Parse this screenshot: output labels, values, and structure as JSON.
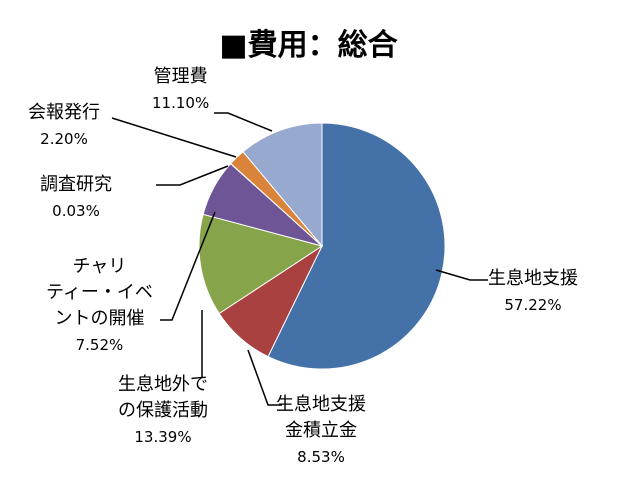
{
  "chart_data": {
    "type": "pie",
    "title": "■費用：総合",
    "slices": [
      {
        "label": "生息地支援",
        "value": 57.22,
        "display": "57.22%",
        "color": "#4472a8"
      },
      {
        "label": "生息地支援金積立金",
        "value": 8.53,
        "display": "8.53%",
        "color": "#a8413f"
      },
      {
        "label": "生息地外での保護活動",
        "value": 13.39,
        "display": "13.39%",
        "color": "#86a44a"
      },
      {
        "label": "チャリティー・イベントの開催",
        "value": 7.52,
        "display": "7.52%",
        "color": "#6e5596"
      },
      {
        "label": "調査研究",
        "value": 0.03,
        "display": "0.03%",
        "color": "#3d8fa8"
      },
      {
        "label": "会報発行",
        "value": 2.2,
        "display": "2.20%",
        "color": "#d9843a"
      },
      {
        "label": "管理費",
        "value": 11.1,
        "display": "11.10%",
        "color": "#98a9cf"
      }
    ]
  },
  "labels": {
    "s0": {
      "l1": "生息地支援",
      "pct": "57.22%"
    },
    "s1": {
      "l1": "生息地支援",
      "l2": "金積立金",
      "pct": "8.53%"
    },
    "s2": {
      "l1": "生息地外で",
      "l2": "の保護活動",
      "pct": "13.39%"
    },
    "s3": {
      "l1": "チャリ",
      "l2": "ティー・イベ",
      "l3": "ントの開催",
      "pct": "7.52%"
    },
    "s4": {
      "l1": "調査研究",
      "pct": "0.03%"
    },
    "s5": {
      "l1": "会報発行",
      "pct": "2.20%"
    },
    "s6": {
      "l1": "管理費",
      "pct": "11.10%"
    }
  }
}
